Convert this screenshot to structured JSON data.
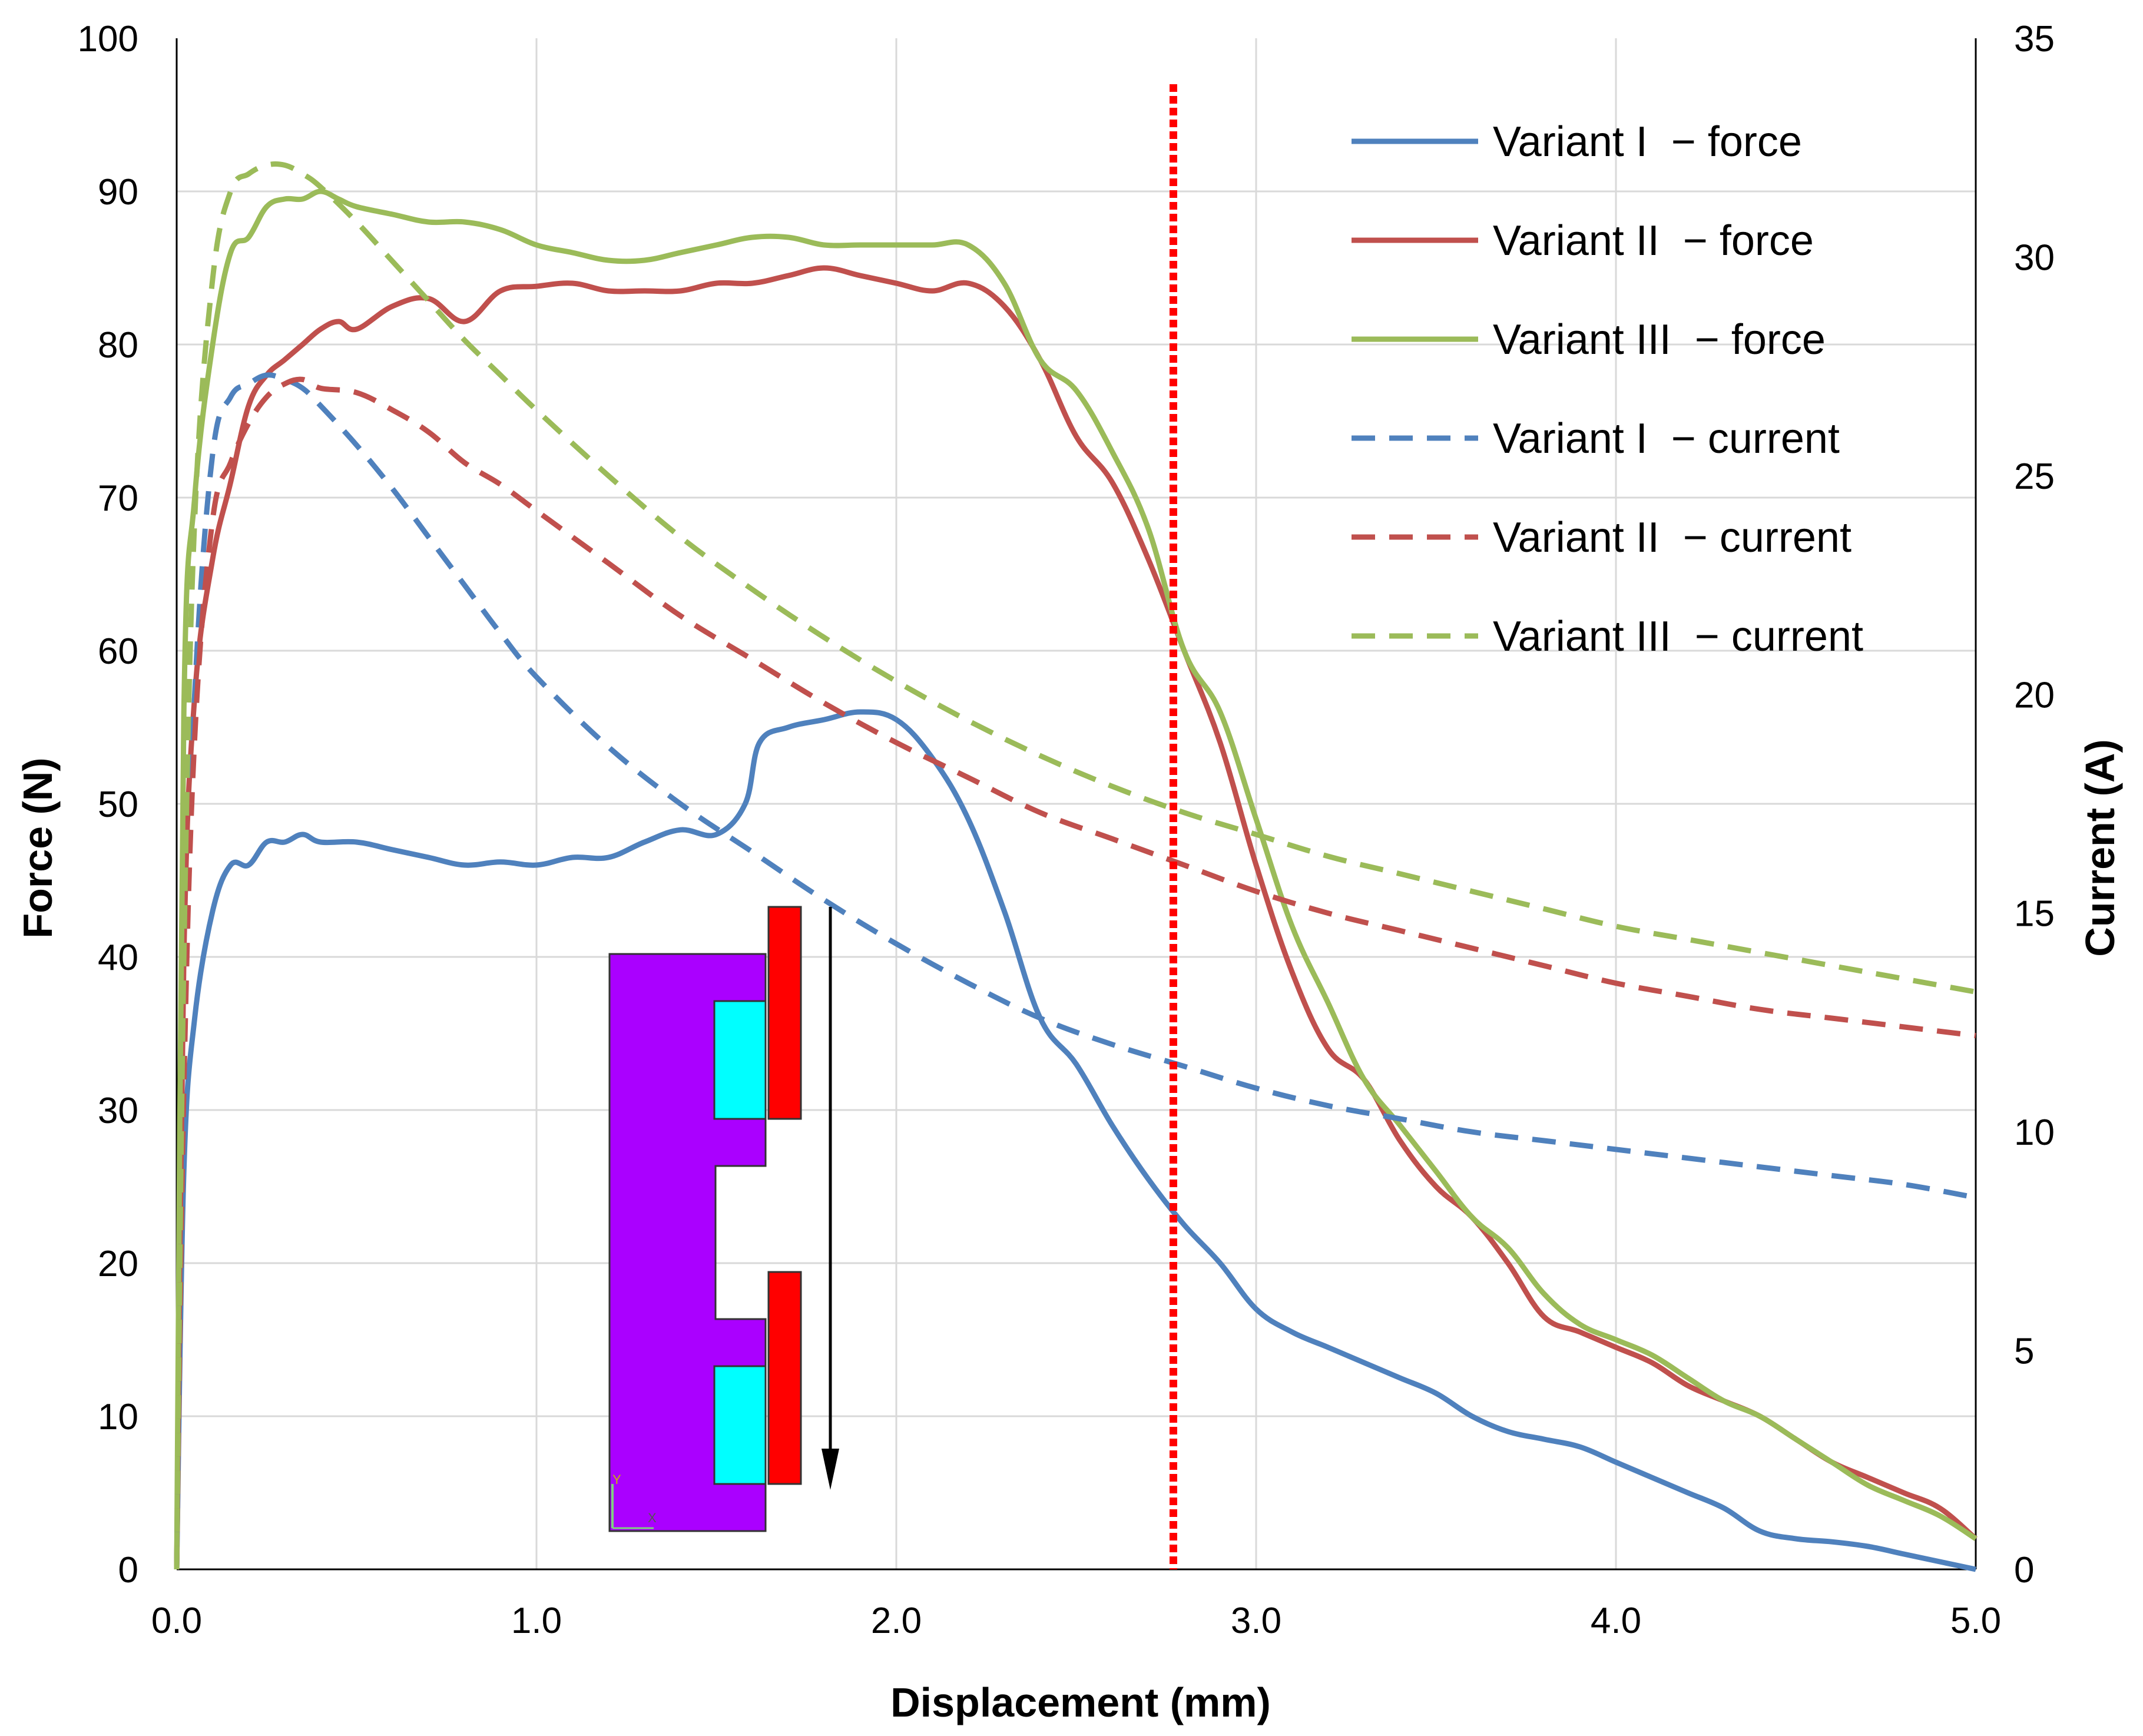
{
  "chart_data": {
    "type": "line",
    "xlabel": "Displacement (mm)",
    "ylabel": "Force (N)",
    "y2label": "Current (A)",
    "xlim": [
      0,
      5
    ],
    "ylim": [
      0,
      100
    ],
    "y2lim": [
      0,
      35
    ],
    "grid": true,
    "x_ticks": [
      "0.0",
      "1.0",
      "2.0",
      "3.0",
      "4.0",
      "5.0"
    ],
    "y_ticks": [
      "0",
      "10",
      "20",
      "30",
      "40",
      "50",
      "60",
      "70",
      "80",
      "90",
      "100"
    ],
    "y2_ticks": [
      "0",
      "5",
      "10",
      "15",
      "20",
      "25",
      "30",
      "35"
    ],
    "legend_position": "top-right",
    "marker_line": {
      "x": 2.77,
      "color": "#ff0000",
      "style": "dotted"
    },
    "series": [
      {
        "name": "Variant I  − force",
        "axis": "left",
        "color": "#4f81bd",
        "dash": "solid",
        "x": [
          0,
          0.02,
          0.05,
          0.1,
          0.15,
          0.2,
          0.25,
          0.3,
          0.35,
          0.4,
          0.5,
          0.6,
          0.7,
          0.8,
          0.9,
          1.0,
          1.1,
          1.2,
          1.3,
          1.4,
          1.5,
          1.58,
          1.62,
          1.7,
          1.8,
          1.9,
          2.0,
          2.1,
          2.2,
          2.3,
          2.4,
          2.5,
          2.6,
          2.7,
          2.8,
          2.9,
          3.0,
          3.1,
          3.2,
          3.3,
          3.4,
          3.5,
          3.6,
          3.7,
          3.8,
          3.9,
          4.0,
          4.1,
          4.2,
          4.3,
          4.4,
          4.5,
          4.6,
          4.7,
          4.8,
          4.9,
          5.0
        ],
        "y": [
          0,
          26,
          36,
          43,
          46,
          46,
          47.5,
          47.5,
          48,
          47.5,
          47.5,
          47,
          46.5,
          46,
          46.2,
          46,
          46.5,
          46.5,
          47.5,
          48.3,
          48,
          50,
          54,
          55,
          55.5,
          56,
          55.5,
          53,
          49,
          43,
          36,
          33,
          29,
          25.5,
          22.5,
          20,
          17,
          15.5,
          14.5,
          13.5,
          12.5,
          11.5,
          10,
          9,
          8.5,
          8,
          7,
          6,
          5,
          4,
          2.5,
          2,
          1.8,
          1.5,
          1,
          0.5,
          0
        ]
      },
      {
        "name": "Variant II  − force",
        "axis": "left",
        "color": "#c0504d",
        "dash": "solid",
        "x": [
          0,
          0.02,
          0.05,
          0.1,
          0.15,
          0.2,
          0.25,
          0.3,
          0.35,
          0.4,
          0.45,
          0.5,
          0.6,
          0.7,
          0.8,
          0.9,
          1.0,
          1.1,
          1.2,
          1.3,
          1.4,
          1.5,
          1.6,
          1.7,
          1.8,
          1.9,
          2.0,
          2.1,
          2.2,
          2.3,
          2.4,
          2.5,
          2.6,
          2.7,
          2.8,
          2.9,
          3.0,
          3.1,
          3.2,
          3.3,
          3.4,
          3.5,
          3.6,
          3.7,
          3.8,
          3.9,
          4.0,
          4.1,
          4.2,
          4.3,
          4.4,
          4.5,
          4.6,
          4.7,
          4.8,
          4.9,
          5.0
        ],
        "y": [
          0,
          40,
          57,
          66,
          71,
          76,
          78,
          79,
          80,
          81,
          81.5,
          81,
          82.5,
          83,
          81.5,
          83.5,
          83.8,
          84,
          83.5,
          83.5,
          83.5,
          84,
          84,
          84.5,
          85,
          84.5,
          84,
          83.5,
          84,
          82.5,
          79,
          74,
          71,
          66,
          60,
          54,
          46,
          39,
          34,
          32,
          28,
          25,
          23,
          20,
          16.5,
          15.5,
          14.5,
          13.5,
          12,
          11,
          10,
          8.5,
          7,
          6,
          5,
          4,
          2
        ]
      },
      {
        "name": "Variant III  − force",
        "axis": "left",
        "color": "#9bbb59",
        "dash": "solid",
        "x": [
          0,
          0.02,
          0.05,
          0.1,
          0.15,
          0.2,
          0.25,
          0.3,
          0.35,
          0.4,
          0.45,
          0.5,
          0.6,
          0.7,
          0.8,
          0.9,
          1.0,
          1.1,
          1.2,
          1.3,
          1.4,
          1.5,
          1.6,
          1.7,
          1.8,
          1.9,
          2.0,
          2.1,
          2.2,
          2.3,
          2.4,
          2.5,
          2.6,
          2.7,
          2.8,
          2.9,
          3.0,
          3.1,
          3.2,
          3.3,
          3.4,
          3.5,
          3.6,
          3.7,
          3.8,
          3.9,
          4.0,
          4.1,
          4.2,
          4.3,
          4.4,
          4.5,
          4.6,
          4.7,
          4.8,
          4.9,
          5.0
        ],
        "y": [
          0,
          56,
          70,
          80,
          86,
          87,
          89,
          89.5,
          89.5,
          90,
          89.5,
          89,
          88.5,
          88,
          88,
          87.5,
          86.5,
          86,
          85.5,
          85.5,
          86,
          86.5,
          87,
          87,
          86.5,
          86.5,
          86.5,
          86.5,
          86.5,
          84,
          79,
          77,
          73,
          68,
          60,
          56,
          49,
          42,
          37,
          32,
          29,
          26,
          23,
          21,
          18,
          16,
          15,
          14,
          12.5,
          11,
          10,
          8.5,
          7,
          5.5,
          4.5,
          3.5,
          2
        ]
      },
      {
        "name": "Variant I  − current",
        "axis": "right",
        "color": "#4f81bd",
        "dash": "dashed",
        "x": [
          0,
          0.02,
          0.05,
          0.1,
          0.15,
          0.2,
          0.25,
          0.3,
          0.35,
          0.4,
          0.5,
          0.6,
          0.7,
          0.8,
          0.9,
          1.0,
          1.2,
          1.4,
          1.6,
          1.8,
          2.0,
          2.2,
          2.4,
          2.6,
          2.8,
          3.0,
          3.2,
          3.4,
          3.6,
          3.8,
          4.0,
          4.2,
          4.4,
          4.6,
          4.8,
          5.0
        ],
        "y": [
          0,
          12,
          20,
          25.5,
          26.8,
          27.1,
          27.3,
          27.2,
          27.0,
          26.6,
          25.7,
          24.7,
          23.6,
          22.5,
          21.4,
          20.4,
          18.8,
          17.5,
          16.4,
          15.3,
          14.3,
          13.4,
          12.6,
          12.0,
          11.5,
          11.0,
          10.6,
          10.3,
          10.0,
          9.8,
          9.6,
          9.4,
          9.2,
          9.0,
          8.8,
          8.5
        ]
      },
      {
        "name": "Variant II  − current",
        "axis": "right",
        "color": "#c0504d",
        "dash": "dashed",
        "x": [
          0,
          0.02,
          0.05,
          0.1,
          0.15,
          0.2,
          0.25,
          0.3,
          0.35,
          0.4,
          0.5,
          0.6,
          0.7,
          0.8,
          0.9,
          1.0,
          1.2,
          1.4,
          1.6,
          1.8,
          2.0,
          2.2,
          2.4,
          2.6,
          2.8,
          3.0,
          3.2,
          3.4,
          3.6,
          3.8,
          4.0,
          4.2,
          4.4,
          4.6,
          4.8,
          5.0
        ],
        "y": [
          0,
          11,
          19,
          24,
          25.3,
          26.2,
          26.8,
          27.1,
          27.2,
          27.0,
          26.9,
          26.5,
          26.0,
          25.3,
          24.8,
          24.2,
          23.0,
          21.8,
          20.8,
          19.8,
          18.9,
          18.1,
          17.3,
          16.7,
          16.1,
          15.5,
          15.0,
          14.6,
          14.2,
          13.8,
          13.4,
          13.1,
          12.8,
          12.6,
          12.4,
          12.2
        ]
      },
      {
        "name": "Variant III  − current",
        "axis": "right",
        "color": "#9bbb59",
        "dash": "dashed",
        "x": [
          0,
          0.02,
          0.05,
          0.1,
          0.15,
          0.2,
          0.25,
          0.3,
          0.35,
          0.4,
          0.5,
          0.6,
          0.7,
          0.8,
          0.9,
          1.0,
          1.2,
          1.4,
          1.6,
          1.8,
          2.0,
          2.2,
          2.4,
          2.6,
          2.8,
          3.0,
          3.2,
          3.4,
          3.6,
          3.8,
          4.0,
          4.2,
          4.4,
          4.6,
          4.8,
          5.0
        ],
        "y": [
          0,
          14,
          24,
          29.5,
          31.5,
          31.9,
          32.1,
          32.1,
          31.9,
          31.6,
          30.8,
          29.9,
          29.0,
          28.1,
          27.3,
          26.5,
          25.0,
          23.6,
          22.4,
          21.3,
          20.3,
          19.4,
          18.6,
          17.9,
          17.3,
          16.8,
          16.3,
          15.9,
          15.5,
          15.1,
          14.7,
          14.4,
          14.1,
          13.8,
          13.5,
          13.2
        ]
      }
    ],
    "inset_diagram": {
      "description_colors": {
        "core": "#aa00ff",
        "coil": "#00ffff",
        "armature": "#ff0000",
        "arrow": "#000000"
      },
      "axis_labels": [
        "Y",
        "X"
      ]
    }
  }
}
